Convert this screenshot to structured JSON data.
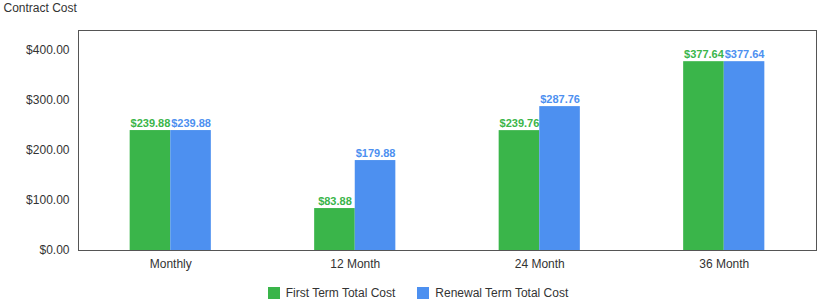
{
  "chart_data": {
    "type": "bar",
    "categories": [
      "Monthly",
      "12 Month",
      "24 Month",
      "36 Month"
    ],
    "series": [
      {
        "name": "First Term Total Cost",
        "color": "#3ab54a",
        "values": [
          239.88,
          83.88,
          239.76,
          377.64
        ],
        "value_labels": [
          "$239.88",
          "$83.88",
          "$239.76",
          "$377.64"
        ]
      },
      {
        "name": "Renewal Term Total Cost",
        "color": "#4d90f0",
        "values": [
          239.88,
          179.88,
          287.76,
          377.64
        ],
        "value_labels": [
          "$239.88",
          "$179.88",
          "$287.76",
          "$377.64"
        ]
      }
    ],
    "ylabel": "Contract Cost",
    "ylim": [
      0,
      440
    ],
    "yticks": [
      {
        "value": 0,
        "label": "$0.00"
      },
      {
        "value": 100,
        "label": "$100.00"
      },
      {
        "value": 200,
        "label": "$200.00"
      },
      {
        "value": 300,
        "label": "$300.00"
      },
      {
        "value": 400,
        "label": "$400.00"
      }
    ],
    "data_labels": true,
    "grid": false,
    "legend": "bottom"
  }
}
